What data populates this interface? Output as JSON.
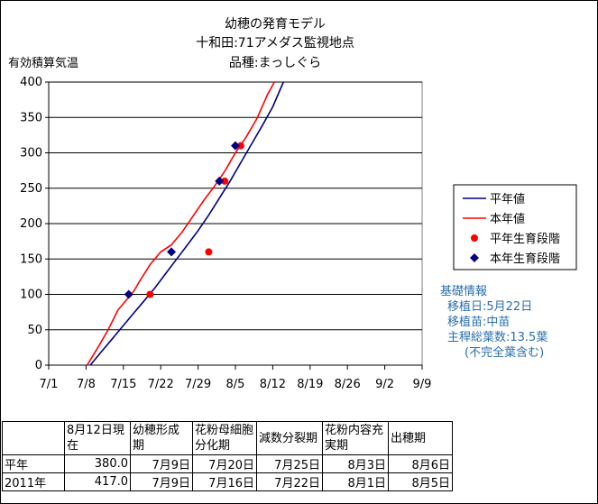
{
  "chart_data": {
    "type": "line",
    "title": [
      "幼穂の発育モデル",
      "十和田:71アメダス監視地点",
      "品種:まっしぐら"
    ],
    "ylabel": "有効積算気温",
    "xlabel": "",
    "ylim": [
      0,
      400
    ],
    "yticks": [
      0,
      50,
      100,
      150,
      200,
      250,
      300,
      350,
      400
    ],
    "x_tick_labels": [
      "7/1",
      "7/8",
      "7/15",
      "7/22",
      "7/29",
      "8/5",
      "8/12",
      "8/19",
      "8/26",
      "9/2",
      "9/9"
    ],
    "x_tick_days": [
      0,
      7,
      14,
      21,
      28,
      35,
      42,
      49,
      56,
      63,
      70
    ],
    "grid": "horizontal",
    "legend_position": "right",
    "series": [
      {
        "name": "平年値",
        "kind": "line",
        "color": "#000080",
        "x": [
          7.8,
          10,
          12,
          14,
          16,
          18,
          20,
          22,
          24,
          26,
          28,
          30,
          32,
          34,
          36,
          38,
          40,
          42,
          44
        ],
        "values": [
          0,
          20,
          38,
          56,
          74,
          92,
          110,
          130,
          150,
          170,
          190,
          212,
          236,
          260,
          286,
          312,
          338,
          365,
          400
        ]
      },
      {
        "name": "本年値",
        "kind": "line",
        "color": "#FF0000",
        "x": [
          7.2,
          9,
          11,
          13,
          15,
          16,
          17,
          19,
          21,
          23,
          25,
          27,
          29,
          31,
          33,
          35,
          37,
          39,
          41,
          42.3
        ],
        "values": [
          0,
          22,
          48,
          78,
          96,
          105,
          118,
          142,
          160,
          170,
          188,
          210,
          232,
          252,
          274,
          300,
          322,
          348,
          382,
          400
        ]
      },
      {
        "name": "平年生育段階",
        "kind": "points",
        "color": "#FF0000",
        "marker": "circle",
        "x": [
          19,
          30,
          33,
          36
        ],
        "values": [
          100,
          160,
          260,
          310
        ]
      },
      {
        "name": "本年生育段階",
        "kind": "points",
        "color": "#000080",
        "marker": "diamond",
        "x": [
          15,
          23,
          32,
          35
        ],
        "values": [
          100,
          160,
          260,
          310
        ]
      }
    ]
  },
  "info": {
    "heading": "基礎情報",
    "transplant_date": "移植日:5月22日",
    "seedling": "移植苗:中苗",
    "leaf_count": "主稈総葉数:13.5葉",
    "leaf_note": "(不完全葉含む)"
  },
  "table": {
    "headers": [
      "8月12日現在",
      "幼穂形成期",
      "花粉母細胞分化期",
      "減数分裂期",
      "花粉内容充実期",
      "出穂期"
    ],
    "rows": [
      {
        "label": "平年",
        "cells": [
          "380.0",
          "7月9日",
          "7月20日",
          "7月25日",
          "8月3日",
          "8月6日"
        ]
      },
      {
        "label": "2011年",
        "cells": [
          "417.0",
          "7月9日",
          "7月16日",
          "7月22日",
          "8月1日",
          "8月5日"
        ]
      }
    ]
  }
}
